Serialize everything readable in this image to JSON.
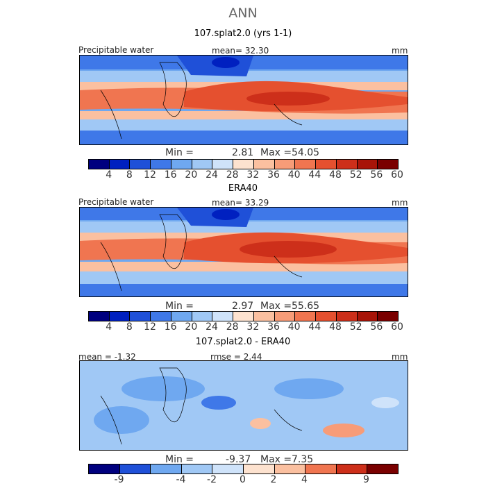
{
  "main_title": "ANN",
  "panels": [
    {
      "title": "107.splat2.0 (yrs 1-1)",
      "left_label": "Precipitable water",
      "center_label": "mean=  32.30",
      "units": "mm",
      "min_label": "Min =",
      "min_value": "2.81",
      "max_label": "Max =",
      "max_value": "54.05",
      "ticks": [
        "4",
        "8",
        "12",
        "16",
        "20",
        "24",
        "28",
        "32",
        "36",
        "40",
        "44",
        "48",
        "52",
        "56",
        "60"
      ]
    },
    {
      "title": "ERA40",
      "left_label": "Precipitable water",
      "center_label": "mean=  33.29",
      "units": "mm",
      "min_label": "Min =",
      "min_value": "2.97",
      "max_label": "Max =",
      "max_value": "55.65",
      "ticks": [
        "4",
        "8",
        "12",
        "16",
        "20",
        "24",
        "28",
        "32",
        "36",
        "40",
        "44",
        "48",
        "52",
        "56",
        "60"
      ]
    },
    {
      "title": "107.splat2.0 - ERA40",
      "left_label": "mean =  -1.32",
      "center_label": "rmse =    2.44",
      "units": "mm",
      "min_label": "Min =",
      "min_value": "-9.37",
      "max_label": "Max =",
      "max_value": "7.35",
      "ticks": [
        "-9",
        "-4",
        "-2",
        "0",
        "2",
        "4",
        "9"
      ]
    }
  ],
  "colors": {
    "scale": [
      "#00007f",
      "#0020c0",
      "#1f50d8",
      "#3f78e8",
      "#6fa8f0",
      "#a0c8f5",
      "#cfe3fa",
      "#fde2cf",
      "#fbc0a0",
      "#f79c78",
      "#f07550",
      "#e5502f",
      "#cd2f1a",
      "#a81408",
      "#7a0000"
    ],
    "diff_scale": [
      "#00007f",
      "#1f50d8",
      "#6fa8f0",
      "#a0c8f5",
      "#cfe3fa",
      "#fde2cf",
      "#fbc0a0",
      "#f07550",
      "#cd2f1a",
      "#7a0000"
    ]
  }
}
